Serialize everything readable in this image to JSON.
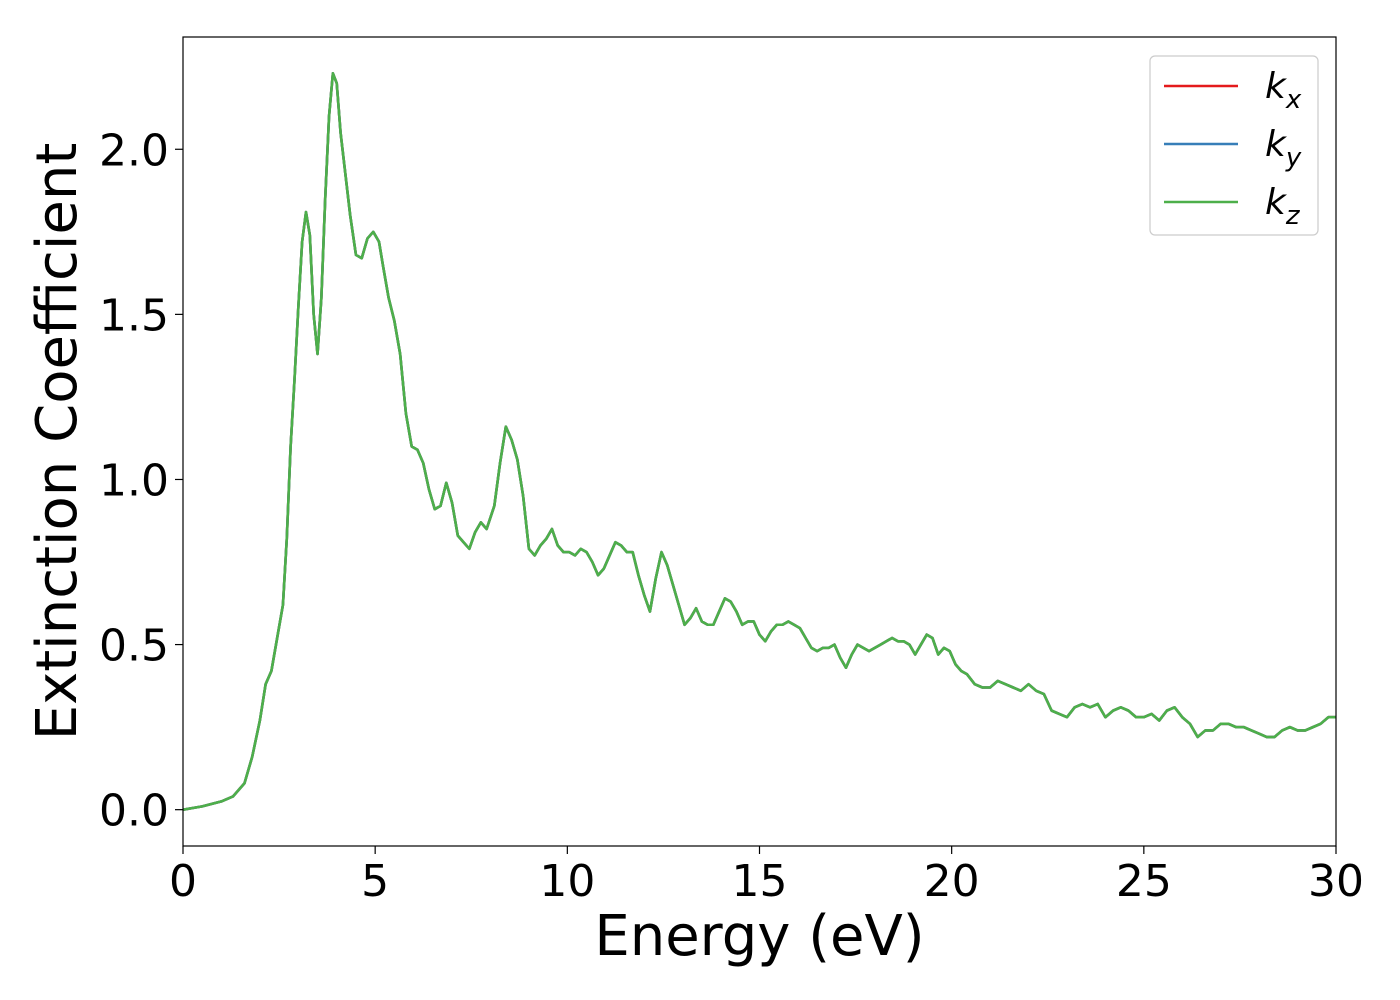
{
  "chart_data": {
    "type": "line",
    "title": "",
    "xlabel": "Energy (eV)",
    "ylabel": "Extinction Coefficient",
    "xlim": [
      0,
      30
    ],
    "ylim": [
      -0.11,
      2.34
    ],
    "xticks": [
      0,
      5,
      10,
      15,
      20,
      25,
      30
    ],
    "yticks": [
      0.0,
      0.5,
      1.0,
      1.5,
      2.0
    ],
    "xtick_labels": [
      "0",
      "5",
      "10",
      "15",
      "20",
      "25",
      "30"
    ],
    "ytick_labels": [
      "0.0",
      "0.5",
      "1.0",
      "1.5",
      "2.0"
    ],
    "grid": false,
    "legend_position": "top-right",
    "series": [
      {
        "name": "k_x",
        "base": "k",
        "sub": "x",
        "color": "#e41a1c",
        "x": [
          0,
          0.5,
          1.0,
          1.3,
          1.6,
          1.8,
          2.0,
          2.15,
          2.3,
          2.45,
          2.6,
          2.7,
          2.8,
          2.9,
          3.0,
          3.1,
          3.2,
          3.3,
          3.4,
          3.5,
          3.6,
          3.7,
          3.8,
          3.9,
          4.0,
          4.1,
          4.2,
          4.35,
          4.5,
          4.65,
          4.8,
          4.95,
          5.1,
          5.2,
          5.35,
          5.5,
          5.65,
          5.8,
          5.95,
          6.1,
          6.25,
          6.4,
          6.55,
          6.7,
          6.85,
          7.0,
          7.15,
          7.3,
          7.45,
          7.6,
          7.75,
          7.9,
          8.1,
          8.25,
          8.4,
          8.55,
          8.7,
          8.85,
          9.0,
          9.15,
          9.3,
          9.45,
          9.6,
          9.75,
          9.9,
          10.05,
          10.2,
          10.35,
          10.5,
          10.65,
          10.8,
          10.95,
          11.1,
          11.25,
          11.4,
          11.55,
          11.7,
          11.85,
          12.0,
          12.15,
          12.3,
          12.45,
          12.6,
          12.75,
          12.9,
          13.05,
          13.2,
          13.35,
          13.5,
          13.65,
          13.8,
          13.95,
          14.1,
          14.25,
          14.4,
          14.55,
          14.7,
          14.85,
          15.0,
          15.15,
          15.3,
          15.45,
          15.6,
          15.75,
          15.9,
          16.05,
          16.2,
          16.35,
          16.5,
          16.65,
          16.8,
          16.95,
          17.1,
          17.25,
          17.4,
          17.55,
          17.7,
          17.85,
          18.0,
          18.15,
          18.3,
          18.45,
          18.6,
          18.75,
          18.9,
          19.05,
          19.2,
          19.35,
          19.5,
          19.65,
          19.8,
          19.95,
          20.1,
          20.25,
          20.4,
          20.6,
          20.8,
          21.0,
          21.2,
          21.4,
          21.6,
          21.8,
          22.0,
          22.2,
          22.4,
          22.6,
          22.8,
          23.0,
          23.2,
          23.4,
          23.6,
          23.8,
          24.0,
          24.2,
          24.4,
          24.6,
          24.8,
          25.0,
          25.2,
          25.4,
          25.6,
          25.8,
          26.0,
          26.2,
          26.4,
          26.6,
          26.8,
          27.0,
          27.2,
          27.4,
          27.6,
          27.8,
          28.0,
          28.2,
          28.4,
          28.6,
          28.8,
          29.0,
          29.2,
          29.4,
          29.6,
          29.8,
          30.0
        ],
        "y": [
          0.0,
          0.01,
          0.025,
          0.04,
          0.08,
          0.16,
          0.27,
          0.38,
          0.42,
          0.52,
          0.62,
          0.82,
          1.1,
          1.3,
          1.52,
          1.72,
          1.81,
          1.74,
          1.5,
          1.38,
          1.55,
          1.85,
          2.1,
          2.23,
          2.2,
          2.05,
          1.95,
          1.8,
          1.68,
          1.67,
          1.73,
          1.75,
          1.72,
          1.65,
          1.55,
          1.48,
          1.38,
          1.2,
          1.1,
          1.09,
          1.05,
          0.97,
          0.91,
          0.92,
          0.99,
          0.93,
          0.83,
          0.81,
          0.79,
          0.84,
          0.87,
          0.85,
          0.92,
          1.05,
          1.16,
          1.12,
          1.06,
          0.95,
          0.79,
          0.77,
          0.8,
          0.82,
          0.85,
          0.8,
          0.78,
          0.78,
          0.77,
          0.79,
          0.78,
          0.75,
          0.71,
          0.73,
          0.77,
          0.81,
          0.8,
          0.78,
          0.78,
          0.71,
          0.65,
          0.6,
          0.7,
          0.78,
          0.74,
          0.68,
          0.62,
          0.56,
          0.58,
          0.61,
          0.57,
          0.56,
          0.56,
          0.6,
          0.64,
          0.63,
          0.6,
          0.56,
          0.57,
          0.57,
          0.53,
          0.51,
          0.54,
          0.56,
          0.56,
          0.57,
          0.56,
          0.55,
          0.52,
          0.49,
          0.48,
          0.49,
          0.49,
          0.5,
          0.46,
          0.43,
          0.47,
          0.5,
          0.49,
          0.48,
          0.49,
          0.5,
          0.51,
          0.52,
          0.51,
          0.51,
          0.5,
          0.47,
          0.5,
          0.53,
          0.52,
          0.47,
          0.49,
          0.48,
          0.44,
          0.42,
          0.41,
          0.38,
          0.37,
          0.37,
          0.39,
          0.38,
          0.37,
          0.36,
          0.38,
          0.36,
          0.35,
          0.3,
          0.29,
          0.28,
          0.31,
          0.32,
          0.31,
          0.32,
          0.28,
          0.3,
          0.31,
          0.3,
          0.28,
          0.28,
          0.29,
          0.27,
          0.3,
          0.31,
          0.28,
          0.26,
          0.22,
          0.24,
          0.24,
          0.26,
          0.26,
          0.25,
          0.25,
          0.24,
          0.23,
          0.22,
          0.22,
          0.24,
          0.25,
          0.24,
          0.24,
          0.25,
          0.26,
          0.28,
          0.28
        ]
      },
      {
        "name": "k_y",
        "base": "k",
        "sub": "y",
        "color": "#377eb8",
        "x": [
          0,
          0.5,
          1.0,
          1.3,
          1.6,
          1.8,
          2.0,
          2.15,
          2.3,
          2.45,
          2.6,
          2.7,
          2.8,
          2.9,
          3.0,
          3.1,
          3.2,
          3.3,
          3.4,
          3.5,
          3.6,
          3.7,
          3.8,
          3.9,
          4.0,
          4.1,
          4.2,
          4.35,
          4.5,
          4.65,
          4.8,
          4.95,
          5.1,
          5.2,
          5.35,
          5.5,
          5.65,
          5.8,
          5.95,
          6.1,
          6.25,
          6.4,
          6.55,
          6.7,
          6.85,
          7.0,
          7.15,
          7.3,
          7.45,
          7.6,
          7.75,
          7.9,
          8.1,
          8.25,
          8.4,
          8.55,
          8.7,
          8.85,
          9.0,
          9.15,
          9.3,
          9.45,
          9.6,
          9.75,
          9.9,
          10.05,
          10.2,
          10.35,
          10.5,
          10.65,
          10.8,
          10.95,
          11.1,
          11.25,
          11.4,
          11.55,
          11.7,
          11.85,
          12.0,
          12.15,
          12.3,
          12.45,
          12.6,
          12.75,
          12.9,
          13.05,
          13.2,
          13.35,
          13.5,
          13.65,
          13.8,
          13.95,
          14.1,
          14.25,
          14.4,
          14.55,
          14.7,
          14.85,
          15.0,
          15.15,
          15.3,
          15.45,
          15.6,
          15.75,
          15.9,
          16.05,
          16.2,
          16.35,
          16.5,
          16.65,
          16.8,
          16.95,
          17.1,
          17.25,
          17.4,
          17.55,
          17.7,
          17.85,
          18.0,
          18.15,
          18.3,
          18.45,
          18.6,
          18.75,
          18.9,
          19.05,
          19.2,
          19.35,
          19.5,
          19.65,
          19.8,
          19.95,
          20.1,
          20.25,
          20.4,
          20.6,
          20.8,
          21.0,
          21.2,
          21.4,
          21.6,
          21.8,
          22.0,
          22.2,
          22.4,
          22.6,
          22.8,
          23.0,
          23.2,
          23.4,
          23.6,
          23.8,
          24.0,
          24.2,
          24.4,
          24.6,
          24.8,
          25.0,
          25.2,
          25.4,
          25.6,
          25.8,
          26.0,
          26.2,
          26.4,
          26.6,
          26.8,
          27.0,
          27.2,
          27.4,
          27.6,
          27.8,
          28.0,
          28.2,
          28.4,
          28.6,
          28.8,
          29.0,
          29.2,
          29.4,
          29.6,
          29.8,
          30.0
        ],
        "y": [
          0.0,
          0.01,
          0.025,
          0.04,
          0.08,
          0.16,
          0.27,
          0.38,
          0.42,
          0.52,
          0.62,
          0.82,
          1.1,
          1.3,
          1.52,
          1.72,
          1.81,
          1.74,
          1.5,
          1.38,
          1.55,
          1.85,
          2.1,
          2.23,
          2.2,
          2.05,
          1.95,
          1.8,
          1.68,
          1.67,
          1.73,
          1.75,
          1.72,
          1.65,
          1.55,
          1.48,
          1.38,
          1.2,
          1.1,
          1.09,
          1.05,
          0.97,
          0.91,
          0.92,
          0.99,
          0.93,
          0.83,
          0.81,
          0.79,
          0.84,
          0.87,
          0.85,
          0.92,
          1.05,
          1.16,
          1.12,
          1.06,
          0.95,
          0.79,
          0.77,
          0.8,
          0.82,
          0.85,
          0.8,
          0.78,
          0.78,
          0.77,
          0.79,
          0.78,
          0.75,
          0.71,
          0.73,
          0.77,
          0.81,
          0.8,
          0.78,
          0.78,
          0.71,
          0.65,
          0.6,
          0.7,
          0.78,
          0.74,
          0.68,
          0.62,
          0.56,
          0.58,
          0.61,
          0.57,
          0.56,
          0.56,
          0.6,
          0.64,
          0.63,
          0.6,
          0.56,
          0.57,
          0.57,
          0.53,
          0.51,
          0.54,
          0.56,
          0.56,
          0.57,
          0.56,
          0.55,
          0.52,
          0.49,
          0.48,
          0.49,
          0.49,
          0.5,
          0.46,
          0.43,
          0.47,
          0.5,
          0.49,
          0.48,
          0.49,
          0.5,
          0.51,
          0.52,
          0.51,
          0.51,
          0.5,
          0.47,
          0.5,
          0.53,
          0.52,
          0.47,
          0.49,
          0.48,
          0.44,
          0.42,
          0.41,
          0.38,
          0.37,
          0.37,
          0.39,
          0.38,
          0.37,
          0.36,
          0.38,
          0.36,
          0.35,
          0.3,
          0.29,
          0.28,
          0.31,
          0.32,
          0.31,
          0.32,
          0.28,
          0.3,
          0.31,
          0.3,
          0.28,
          0.28,
          0.29,
          0.27,
          0.3,
          0.31,
          0.28,
          0.26,
          0.22,
          0.24,
          0.24,
          0.26,
          0.26,
          0.25,
          0.25,
          0.24,
          0.23,
          0.22,
          0.22,
          0.24,
          0.25,
          0.24,
          0.24,
          0.25,
          0.26,
          0.28,
          0.28
        ]
      },
      {
        "name": "k_z",
        "base": "k",
        "sub": "z",
        "color": "#4daf4a",
        "x": [
          0,
          0.5,
          1.0,
          1.3,
          1.6,
          1.8,
          2.0,
          2.15,
          2.3,
          2.45,
          2.6,
          2.7,
          2.8,
          2.9,
          3.0,
          3.1,
          3.2,
          3.3,
          3.4,
          3.5,
          3.6,
          3.7,
          3.8,
          3.9,
          4.0,
          4.1,
          4.2,
          4.35,
          4.5,
          4.65,
          4.8,
          4.95,
          5.1,
          5.2,
          5.35,
          5.5,
          5.65,
          5.8,
          5.95,
          6.1,
          6.25,
          6.4,
          6.55,
          6.7,
          6.85,
          7.0,
          7.15,
          7.3,
          7.45,
          7.6,
          7.75,
          7.9,
          8.1,
          8.25,
          8.4,
          8.55,
          8.7,
          8.85,
          9.0,
          9.15,
          9.3,
          9.45,
          9.6,
          9.75,
          9.9,
          10.05,
          10.2,
          10.35,
          10.5,
          10.65,
          10.8,
          10.95,
          11.1,
          11.25,
          11.4,
          11.55,
          11.7,
          11.85,
          12.0,
          12.15,
          12.3,
          12.45,
          12.6,
          12.75,
          12.9,
          13.05,
          13.2,
          13.35,
          13.5,
          13.65,
          13.8,
          13.95,
          14.1,
          14.25,
          14.4,
          14.55,
          14.7,
          14.85,
          15.0,
          15.15,
          15.3,
          15.45,
          15.6,
          15.75,
          15.9,
          16.05,
          16.2,
          16.35,
          16.5,
          16.65,
          16.8,
          16.95,
          17.1,
          17.25,
          17.4,
          17.55,
          17.7,
          17.85,
          18.0,
          18.15,
          18.3,
          18.45,
          18.6,
          18.75,
          18.9,
          19.05,
          19.2,
          19.35,
          19.5,
          19.65,
          19.8,
          19.95,
          20.1,
          20.25,
          20.4,
          20.6,
          20.8,
          21.0,
          21.2,
          21.4,
          21.6,
          21.8,
          22.0,
          22.2,
          22.4,
          22.6,
          22.8,
          23.0,
          23.2,
          23.4,
          23.6,
          23.8,
          24.0,
          24.2,
          24.4,
          24.6,
          24.8,
          25.0,
          25.2,
          25.4,
          25.6,
          25.8,
          26.0,
          26.2,
          26.4,
          26.6,
          26.8,
          27.0,
          27.2,
          27.4,
          27.6,
          27.8,
          28.0,
          28.2,
          28.4,
          28.6,
          28.8,
          29.0,
          29.2,
          29.4,
          29.6,
          29.8,
          30.0
        ],
        "y": [
          0.0,
          0.01,
          0.025,
          0.04,
          0.08,
          0.16,
          0.27,
          0.38,
          0.42,
          0.52,
          0.62,
          0.82,
          1.1,
          1.3,
          1.52,
          1.72,
          1.81,
          1.74,
          1.5,
          1.38,
          1.55,
          1.85,
          2.1,
          2.23,
          2.2,
          2.05,
          1.95,
          1.8,
          1.68,
          1.67,
          1.73,
          1.75,
          1.72,
          1.65,
          1.55,
          1.48,
          1.38,
          1.2,
          1.1,
          1.09,
          1.05,
          0.97,
          0.91,
          0.92,
          0.99,
          0.93,
          0.83,
          0.81,
          0.79,
          0.84,
          0.87,
          0.85,
          0.92,
          1.05,
          1.16,
          1.12,
          1.06,
          0.95,
          0.79,
          0.77,
          0.8,
          0.82,
          0.85,
          0.8,
          0.78,
          0.78,
          0.77,
          0.79,
          0.78,
          0.75,
          0.71,
          0.73,
          0.77,
          0.81,
          0.8,
          0.78,
          0.78,
          0.71,
          0.65,
          0.6,
          0.7,
          0.78,
          0.74,
          0.68,
          0.62,
          0.56,
          0.58,
          0.61,
          0.57,
          0.56,
          0.56,
          0.6,
          0.64,
          0.63,
          0.6,
          0.56,
          0.57,
          0.57,
          0.53,
          0.51,
          0.54,
          0.56,
          0.56,
          0.57,
          0.56,
          0.55,
          0.52,
          0.49,
          0.48,
          0.49,
          0.49,
          0.5,
          0.46,
          0.43,
          0.47,
          0.5,
          0.49,
          0.48,
          0.49,
          0.5,
          0.51,
          0.52,
          0.51,
          0.51,
          0.5,
          0.47,
          0.5,
          0.53,
          0.52,
          0.47,
          0.49,
          0.48,
          0.44,
          0.42,
          0.41,
          0.38,
          0.37,
          0.37,
          0.39,
          0.38,
          0.37,
          0.36,
          0.38,
          0.36,
          0.35,
          0.3,
          0.29,
          0.28,
          0.31,
          0.32,
          0.31,
          0.32,
          0.28,
          0.3,
          0.31,
          0.3,
          0.28,
          0.28,
          0.29,
          0.27,
          0.3,
          0.31,
          0.28,
          0.26,
          0.22,
          0.24,
          0.24,
          0.26,
          0.26,
          0.25,
          0.25,
          0.24,
          0.23,
          0.22,
          0.22,
          0.24,
          0.25,
          0.24,
          0.24,
          0.25,
          0.26,
          0.28,
          0.28
        ]
      }
    ]
  }
}
